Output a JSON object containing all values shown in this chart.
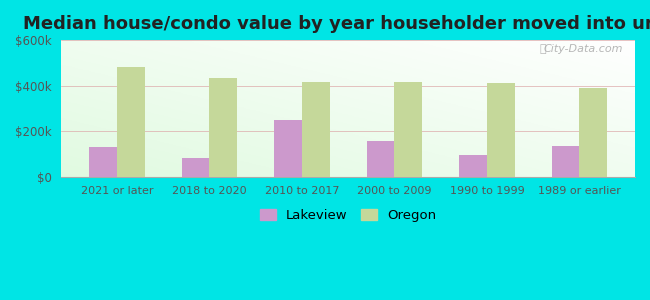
{
  "title": "Median house/condo value by year householder moved into unit",
  "categories": [
    "2021 or later",
    "2018 to 2020",
    "2010 to 2017",
    "2000 to 2009",
    "1990 to 1999",
    "1989 or earlier"
  ],
  "lakeview_values": [
    130000,
    80000,
    250000,
    155000,
    95000,
    135000
  ],
  "oregon_values": [
    480000,
    435000,
    415000,
    415000,
    410000,
    390000
  ],
  "lakeview_color": "#cc99cc",
  "oregon_color": "#c5d89a",
  "outer_background": "#00e5e5",
  "ylim": [
    0,
    600000
  ],
  "yticks": [
    0,
    200000,
    400000,
    600000
  ],
  "ytick_labels": [
    "$0",
    "$200k",
    "$400k",
    "$600k"
  ],
  "legend_lakeview": "Lakeview",
  "legend_oregon": "Oregon",
  "bar_width": 0.3,
  "title_fontsize": 13,
  "watermark": "City-Data.com"
}
